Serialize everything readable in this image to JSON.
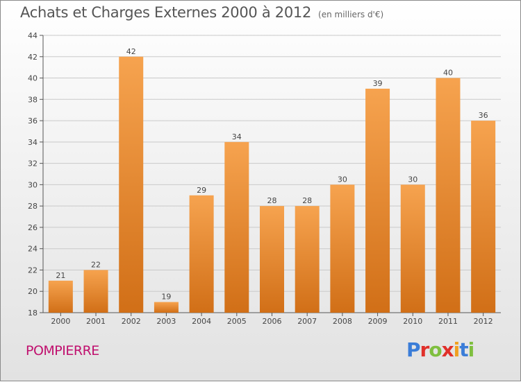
{
  "header": {
    "title": "Achats et Charges Externes 2000 à 2012",
    "unit": "(en milliers d'€)"
  },
  "footer": {
    "commune": "POMPIERRE",
    "logo_text": "Proxiti"
  },
  "colors": {
    "bar_top": "#f6a34f",
    "bar_bottom": "#d16f17",
    "commune": "#c0106e",
    "logo": [
      "#3b7dd8",
      "#e0302a",
      "#7fbf3f",
      "#e0302a",
      "#f0a020",
      "#3b7dd8",
      "#7fbf3f"
    ]
  },
  "chart_data": {
    "type": "bar",
    "categories": [
      "2000",
      "2001",
      "2002",
      "2003",
      "2004",
      "2005",
      "2006",
      "2007",
      "2008",
      "2009",
      "2010",
      "2011",
      "2012"
    ],
    "values": [
      21,
      22,
      42,
      19,
      29,
      34,
      28,
      28,
      30,
      39,
      30,
      40,
      36
    ],
    "ylim": [
      18,
      44
    ],
    "yticks": [
      18,
      20,
      22,
      24,
      26,
      28,
      30,
      32,
      34,
      36,
      38,
      40,
      42,
      44
    ],
    "grid": true,
    "legend": "none"
  }
}
